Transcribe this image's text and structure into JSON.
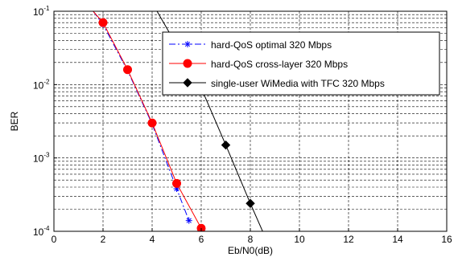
{
  "chart_data": {
    "type": "line",
    "xlabel": "Eb/N0(dB)",
    "ylabel": "BER",
    "xlim": [
      0,
      16
    ],
    "ylim": [
      0.0001,
      0.1
    ],
    "yscale": "log",
    "grid": true,
    "legend_position": "top-right",
    "x_ticks": [
      "0",
      "2",
      "4",
      "6",
      "8",
      "10",
      "12",
      "14",
      "16"
    ],
    "y_ticks": [
      {
        "base": "10",
        "exp": "-4"
      },
      {
        "base": "10",
        "exp": "-3"
      },
      {
        "base": "10",
        "exp": "-2"
      },
      {
        "base": "10",
        "exp": "-1"
      }
    ],
    "series": [
      {
        "name": "hard-QoS optimal 320 Mbps",
        "color": "#0000ff",
        "line_style": "dash-dot",
        "marker": "asterisk",
        "x": [
          1.6,
          2,
          3,
          4,
          5,
          5.5
        ],
        "y": [
          0.1,
          0.066,
          0.0155,
          0.0029,
          0.00038,
          0.00014
        ]
      },
      {
        "name": "hard-QoS cross-layer 320 Mbps",
        "color": "#ff0000",
        "line_style": "solid",
        "marker": "circle",
        "x": [
          1.6,
          2,
          3,
          4,
          5,
          6
        ],
        "y": [
          0.1,
          0.07,
          0.016,
          0.003,
          0.00045,
          0.00011
        ]
      },
      {
        "name": "single-user WiMedia with TFC 320 Mbps",
        "color": "#000000",
        "line_style": "solid",
        "marker": "diamond",
        "x": [
          4.2,
          6,
          7,
          8,
          8.5
        ],
        "y": [
          0.1,
          0.009,
          0.0015,
          0.00024,
          0.0001
        ]
      }
    ]
  }
}
